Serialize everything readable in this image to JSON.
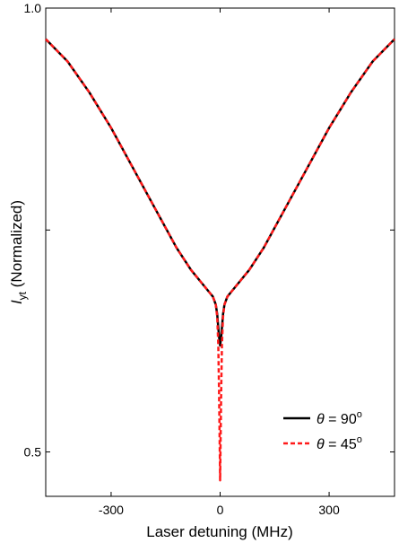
{
  "chart_data": {
    "type": "line",
    "xlabel": "Laser detuning (MHz)",
    "ylabel_main": "I",
    "ylabel_sub": "yt",
    "ylabel_rest": " (Normalized)",
    "xlim": [
      -480,
      480
    ],
    "ylim": [
      0.45,
      1.0
    ],
    "xticks": [
      -300,
      0,
      300
    ],
    "xtick_labels": [
      "-300",
      "0",
      "300"
    ],
    "yticks_labeled": [
      0.5,
      1.0
    ],
    "ytick_labels": [
      "0.5",
      "1.0"
    ],
    "yticks_unlabeled": [
      0.75
    ],
    "grid": false,
    "legend_position": "bottom-right",
    "series": [
      {
        "name_symbol": "θ",
        "name_value": " = 90",
        "name_sup": "o",
        "color": "#000000",
        "dash": "solid",
        "x": [
          -480,
          -420,
          -360,
          -300,
          -240,
          -180,
          -120,
          -80,
          -50,
          -30,
          -20,
          -12,
          -8,
          -5,
          -3,
          0,
          3,
          5,
          8,
          12,
          20,
          30,
          50,
          80,
          120,
          180,
          240,
          300,
          360,
          420,
          480
        ],
        "y": [
          0.965,
          0.94,
          0.905,
          0.865,
          0.82,
          0.775,
          0.73,
          0.705,
          0.69,
          0.68,
          0.675,
          0.666,
          0.655,
          0.64,
          0.63,
          0.62,
          0.63,
          0.64,
          0.655,
          0.666,
          0.675,
          0.68,
          0.69,
          0.705,
          0.73,
          0.775,
          0.82,
          0.865,
          0.905,
          0.94,
          0.965
        ]
      },
      {
        "name_symbol": "θ",
        "name_value": " = 45",
        "name_sup": "o",
        "color": "#ff1a1a",
        "dash": "dashed",
        "x": [
          -480,
          -420,
          -360,
          -300,
          -240,
          -180,
          -120,
          -80,
          -50,
          -30,
          -20,
          -12,
          -8,
          -5,
          -3,
          0,
          3,
          5,
          8,
          12,
          20,
          30,
          50,
          80,
          120,
          180,
          240,
          300,
          360,
          420,
          480
        ],
        "y": [
          0.965,
          0.94,
          0.905,
          0.865,
          0.82,
          0.775,
          0.73,
          0.705,
          0.69,
          0.68,
          0.675,
          0.666,
          0.652,
          0.62,
          0.57,
          0.468,
          0.57,
          0.62,
          0.652,
          0.666,
          0.675,
          0.68,
          0.69,
          0.705,
          0.73,
          0.775,
          0.82,
          0.865,
          0.905,
          0.94,
          0.965
        ]
      }
    ]
  }
}
